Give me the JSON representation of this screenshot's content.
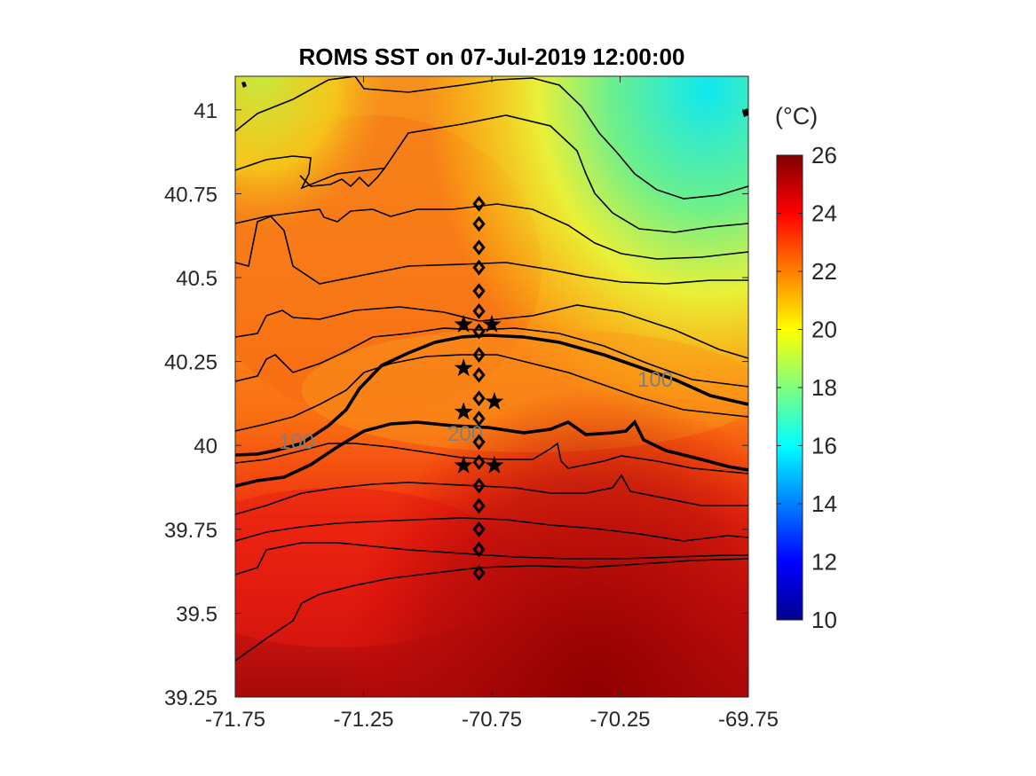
{
  "chart_data": {
    "type": "heatmap",
    "title": "ROMS SST on 07-Jul-2019 12:00:00",
    "xlim": [
      -71.75,
      -69.75
    ],
    "ylim": [
      39.25,
      41.1
    ],
    "xticks": [
      -71.75,
      -71.25,
      -70.75,
      -70.25,
      -69.75
    ],
    "xtick_labels": [
      "-71.75",
      "-71.25",
      "-70.75",
      "-70.25",
      "-69.75"
    ],
    "yticks": [
      39.25,
      39.5,
      39.75,
      40,
      40.25,
      40.5,
      40.75,
      41
    ],
    "ytick_labels": [
      "39.25",
      "39.5",
      "39.75",
      "40",
      "40.25",
      "40.5",
      "40.75",
      "41"
    ],
    "colorbar": {
      "label": "(°C)",
      "range": [
        10,
        26
      ],
      "ticks": [
        10,
        12,
        14,
        16,
        18,
        20,
        22,
        24,
        26
      ],
      "tick_labels": [
        "10",
        "12",
        "14",
        "16",
        "18",
        "20",
        "22",
        "24",
        "26"
      ],
      "colormap": "jet"
    },
    "contour_labels": [
      {
        "text": "100",
        "x": -71.6,
        "y": 39.99
      },
      {
        "text": "100",
        "x": -70.1,
        "y": 40.2
      },
      {
        "text": "200",
        "x": -70.85,
        "y": 40.04
      }
    ],
    "station_markers": {
      "type": "diamond",
      "lon": -70.8,
      "lat": [
        40.72,
        40.66,
        40.59,
        40.53,
        40.46,
        40.4,
        40.34,
        40.27,
        40.21,
        40.14,
        40.08,
        40.01,
        39.95,
        39.88,
        39.82,
        39.75,
        39.69,
        39.62
      ]
    },
    "star_markers": [
      {
        "lon": -70.86,
        "lat": 40.36
      },
      {
        "lon": -70.75,
        "lat": 40.36
      },
      {
        "lon": -70.86,
        "lat": 40.23
      },
      {
        "lon": -70.74,
        "lat": 40.13
      },
      {
        "lon": -70.86,
        "lat": 40.1
      },
      {
        "lon": -70.86,
        "lat": 39.94
      },
      {
        "lon": -70.74,
        "lat": 39.94
      }
    ]
  }
}
